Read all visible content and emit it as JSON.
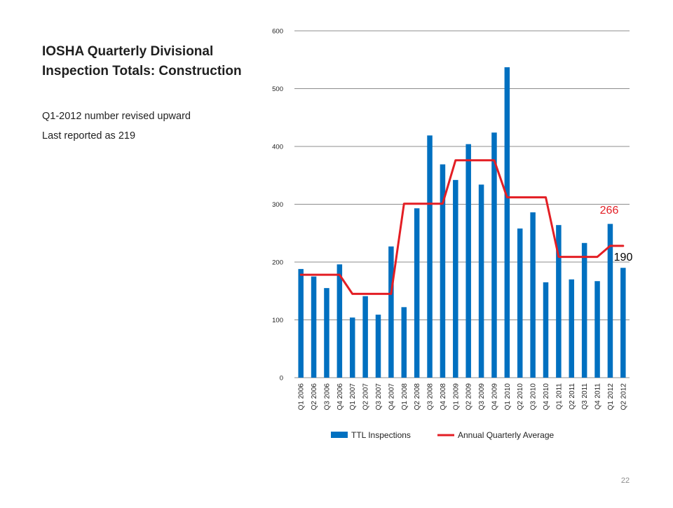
{
  "slide": {
    "title": "IOSHA Quarterly Divisional Inspection Totals: Construction",
    "notes": [
      "Q1-2012 number revised upward",
      "Last reported as 219"
    ],
    "page_number": "22"
  },
  "chart_data": {
    "type": "bar",
    "categories": [
      "Q1 2006",
      "Q2 2006",
      "Q3 2006",
      "Q4 2006",
      "Q1 2007",
      "Q2 2007",
      "Q3 2007",
      "Q4 2007",
      "Q1 2008",
      "Q2 2008",
      "Q3 2008",
      "Q4 2008",
      "Q1 2009",
      "Q2 2009",
      "Q3 2009",
      "Q4 2009",
      "Q1 2010",
      "Q2 2010",
      "Q3 2010",
      "Q4 2010",
      "Q1 2011",
      "Q2 2011",
      "Q3 2011",
      "Q4 2011",
      "Q1 2012",
      "Q2 2012"
    ],
    "series": [
      {
        "name": "TTL Inspections",
        "type": "bar",
        "color": "#0070C0",
        "values": [
          188,
          175,
          155,
          196,
          104,
          141,
          109,
          227,
          122,
          293,
          419,
          369,
          342,
          404,
          334,
          424,
          537,
          258,
          286,
          165,
          264,
          170,
          233,
          167,
          266,
          190
        ]
      },
      {
        "name": "Annual Quarterly Average",
        "type": "line",
        "color": "#E31E24",
        "values": [
          178,
          178,
          178,
          178,
          145,
          145,
          145,
          145,
          301,
          301,
          301,
          301,
          376,
          376,
          376,
          376,
          312,
          312,
          312,
          312,
          209,
          209,
          209,
          209,
          228,
          228
        ]
      }
    ],
    "ylim": [
      0,
      600
    ],
    "yticks": [
      0,
      100,
      200,
      300,
      400,
      500,
      600
    ],
    "grid": true,
    "legend": "bottom",
    "annotations": [
      {
        "text": "266",
        "color": "#E31E24"
      },
      {
        "text": "190",
        "color": "#000000"
      }
    ]
  }
}
